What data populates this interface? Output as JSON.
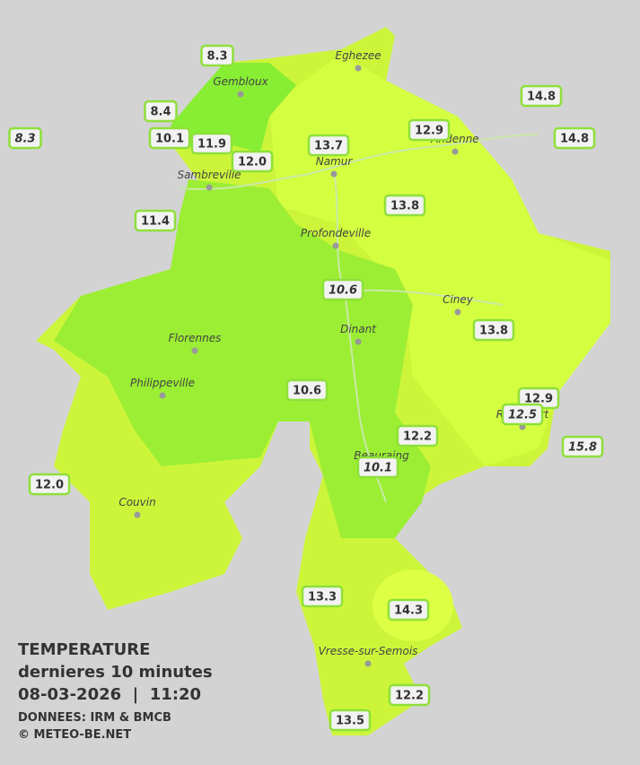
{
  "legend": {
    "title": "TEMPERATURE",
    "subtitle": "dernieres 10 minutes",
    "timestamp": "08-03-2026  |  11:20",
    "source": "DONNEES: IRM & BMCB",
    "copyright": "© METEO-BE.NET"
  },
  "cities": [
    "Eghezee",
    "Gembloux",
    "Andenne",
    "Namur",
    "Sambreville",
    "Profondeville",
    "Ciney",
    "Dinant",
    "Florennes",
    "Philippeville",
    "Rochefort",
    "Beauraing",
    "Couvin",
    "Vresse-sur-Semois"
  ],
  "stations": [
    {
      "label": "8.3"
    },
    {
      "label": "8.4"
    },
    {
      "label": "8.3",
      "italic": true
    },
    {
      "label": "10.1"
    },
    {
      "label": "11.9"
    },
    {
      "label": "12.0"
    },
    {
      "label": "13.7"
    },
    {
      "label": "12.9"
    },
    {
      "label": "14.8"
    },
    {
      "label": "14.8"
    },
    {
      "label": "11.4"
    },
    {
      "label": "13.8"
    },
    {
      "label": "10.6",
      "italic": true
    },
    {
      "label": "13.8"
    },
    {
      "label": "10.6"
    },
    {
      "label": "12.9"
    },
    {
      "label": "12.5",
      "italic": true
    },
    {
      "label": "15.8",
      "italic": true
    },
    {
      "label": "12.2"
    },
    {
      "label": "10.1",
      "italic": true
    },
    {
      "label": "12.0"
    },
    {
      "label": "13.3"
    },
    {
      "label": "14.3"
    },
    {
      "label": "12.2"
    },
    {
      "label": "13.5"
    }
  ]
}
